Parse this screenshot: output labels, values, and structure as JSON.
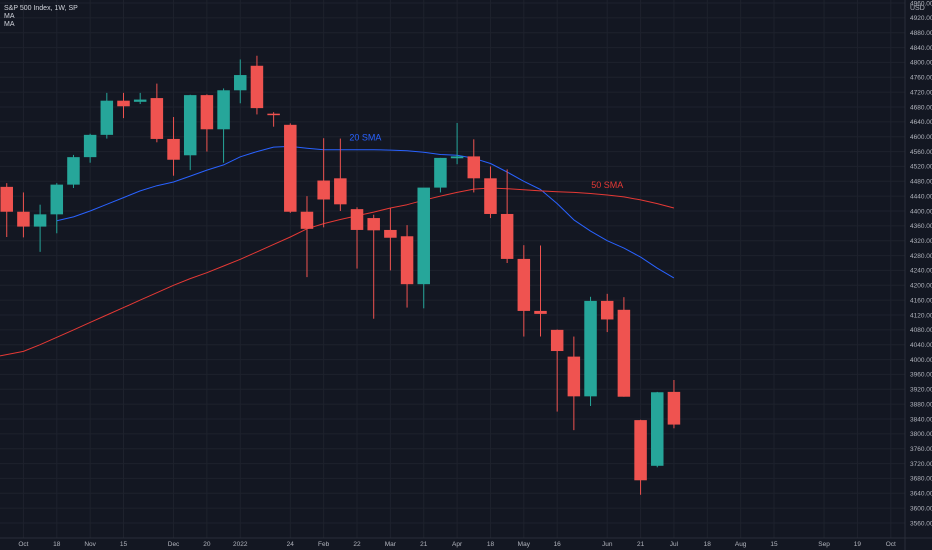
{
  "header": {
    "title": "S&P 500 Index, 1W, SP",
    "indicators": [
      "MA",
      "MA"
    ],
    "currency": "USD"
  },
  "colors": {
    "background": "#131722",
    "grid": "#1e222d",
    "up": "#26a69a",
    "down": "#ef5350",
    "sma20": "#2962ff",
    "sma50": "#e53935",
    "axis_text": "#b2b5be"
  },
  "chart_data": {
    "type": "candlestick",
    "title": "S&P 500 Index, 1W, SP",
    "ylabel": "USD",
    "ylim": [
      3560,
      4960
    ],
    "y_ticks": [
      3560,
      3600,
      3640,
      3680,
      3720,
      3760,
      3800,
      3840,
      3880,
      3920,
      3960,
      4000,
      4040,
      4080,
      4120,
      4160,
      4200,
      4240,
      4280,
      4320,
      4360,
      4400,
      4440,
      4480,
      4520,
      4560,
      4600,
      4640,
      4680,
      4720,
      4760,
      4800,
      4840,
      4880,
      4920,
      4960
    ],
    "y_tick_labels": [
      "3560.00",
      "3600.00",
      "3640.00",
      "3680.00",
      "3720.00",
      "3760.00",
      "3800.00",
      "3840.00",
      "3880.00",
      "3920.00",
      "3960.00",
      "4000.00",
      "4040.00",
      "4080.00",
      "4120.00",
      "4160.00",
      "4200.00",
      "4240.00",
      "4280.00",
      "4320.00",
      "4360.00",
      "4400.00",
      "4440.00",
      "4480.00",
      "4520.00",
      "4560.00",
      "4600.00",
      "4640.00",
      "4680.00",
      "4720.00",
      "4760.00",
      "4800.00",
      "4840.00",
      "4880.00",
      "4920.00",
      "4960.00"
    ],
    "x_tick_labels": [
      {
        "label": "Oct",
        "bar": 1.5
      },
      {
        "label": "18",
        "bar": 3.5
      },
      {
        "label": "Nov",
        "bar": 5.5
      },
      {
        "label": "15",
        "bar": 7.5
      },
      {
        "label": "Dec",
        "bar": 10.5
      },
      {
        "label": "20",
        "bar": 12.5
      },
      {
        "label": "2022",
        "bar": 14.5
      },
      {
        "label": "24",
        "bar": 17.5
      },
      {
        "label": "Feb",
        "bar": 19.5
      },
      {
        "label": "22",
        "bar": 21.5
      },
      {
        "label": "Mar",
        "bar": 23.5
      },
      {
        "label": "21",
        "bar": 25.5
      },
      {
        "label": "Apr",
        "bar": 27.5
      },
      {
        "label": "18",
        "bar": 29.5
      },
      {
        "label": "May",
        "bar": 31.5
      },
      {
        "label": "16",
        "bar": 33.5
      },
      {
        "label": "Jun",
        "bar": 36.5
      },
      {
        "label": "21",
        "bar": 38.5
      },
      {
        "label": "Jul",
        "bar": 40.5
      },
      {
        "label": "18",
        "bar": 42.5
      },
      {
        "label": "15",
        "bar": 46.5
      },
      {
        "label": "Aug",
        "bar": 44.5
      },
      {
        "label": "Sep",
        "bar": 49.5
      },
      {
        "label": "19",
        "bar": 51.5
      },
      {
        "label": "Oct",
        "bar": 53.5
      }
    ],
    "candles": [
      {
        "o": 4465,
        "h": 4475,
        "l": 4330,
        "c": 4398
      },
      {
        "o": 4398,
        "h": 4450,
        "l": 4329,
        "c": 4358
      },
      {
        "o": 4358,
        "h": 4417,
        "l": 4290,
        "c": 4391
      },
      {
        "o": 4391,
        "h": 4475,
        "l": 4340,
        "c": 4471
      },
      {
        "o": 4471,
        "h": 4551,
        "l": 4462,
        "c": 4545
      },
      {
        "o": 4545,
        "h": 4608,
        "l": 4530,
        "c": 4605
      },
      {
        "o": 4605,
        "h": 4718,
        "l": 4595,
        "c": 4697
      },
      {
        "o": 4697,
        "h": 4718,
        "l": 4650,
        "c": 4682
      },
      {
        "o": 4694,
        "h": 4718,
        "l": 4688,
        "c": 4700
      },
      {
        "o": 4704,
        "h": 4743,
        "l": 4585,
        "c": 4594
      },
      {
        "o": 4594,
        "h": 4653,
        "l": 4495,
        "c": 4538
      },
      {
        "o": 4550,
        "h": 4713,
        "l": 4510,
        "c": 4712
      },
      {
        "o": 4712,
        "h": 4714,
        "l": 4560,
        "c": 4620
      },
      {
        "o": 4620,
        "h": 4730,
        "l": 4530,
        "c": 4725
      },
      {
        "o": 4725,
        "h": 4808,
        "l": 4690,
        "c": 4766
      },
      {
        "o": 4791,
        "h": 4818,
        "l": 4660,
        "c": 4677
      },
      {
        "o": 4662,
        "h": 4666,
        "l": 4627,
        "c": 4658
      },
      {
        "o": 4632,
        "h": 4636,
        "l": 4395,
        "c": 4398
      },
      {
        "o": 4398,
        "h": 4440,
        "l": 4222,
        "c": 4352
      },
      {
        "o": 4482,
        "h": 4596,
        "l": 4356,
        "c": 4431
      },
      {
        "o": 4488,
        "h": 4595,
        "l": 4400,
        "c": 4418
      },
      {
        "o": 4405,
        "h": 4410,
        "l": 4245,
        "c": 4349
      },
      {
        "o": 4381,
        "h": 4390,
        "l": 4110,
        "c": 4348
      },
      {
        "o": 4349,
        "h": 4408,
        "l": 4240,
        "c": 4328
      },
      {
        "o": 4332,
        "h": 4362,
        "l": 4140,
        "c": 4203
      },
      {
        "o": 4203,
        "h": 4450,
        "l": 4138,
        "c": 4463
      },
      {
        "o": 4463,
        "h": 4543,
        "l": 4450,
        "c": 4543
      },
      {
        "o": 4542,
        "h": 4637,
        "l": 4526,
        "c": 4547
      },
      {
        "o": 4547,
        "h": 4593,
        "l": 4450,
        "c": 4488
      },
      {
        "o": 4488,
        "h": 4520,
        "l": 4381,
        "c": 4392
      },
      {
        "o": 4392,
        "h": 4512,
        "l": 4260,
        "c": 4271
      },
      {
        "o": 4271,
        "h": 4308,
        "l": 4062,
        "c": 4131
      },
      {
        "o": 4131,
        "h": 4307,
        "l": 4062,
        "c": 4123
      },
      {
        "o": 4080,
        "h": 4081,
        "l": 3860,
        "c": 4023
      },
      {
        "o": 4008,
        "h": 4062,
        "l": 3810,
        "c": 3901
      },
      {
        "o": 3901,
        "h": 4169,
        "l": 3875,
        "c": 4158
      },
      {
        "o": 4158,
        "h": 4177,
        "l": 4074,
        "c": 4108
      },
      {
        "o": 4134,
        "h": 4168,
        "l": 3900,
        "c": 3900
      },
      {
        "o": 3837,
        "h": 3838,
        "l": 3636,
        "c": 3675
      },
      {
        "o": 3714,
        "h": 3913,
        "l": 3710,
        "c": 3912
      },
      {
        "o": 3913,
        "h": 3945,
        "l": 3815,
        "c": 3825
      }
    ],
    "series": [
      {
        "name": "20 SMA",
        "values": [
          null,
          null,
          null,
          4374,
          4384,
          4400,
          4418,
          4436,
          4454,
          4468,
          4478,
          4494,
          4510,
          4524,
          4546,
          4560,
          4572,
          4574,
          4569,
          4565,
          4565,
          4565,
          4565,
          4564,
          4562,
          4558,
          4552,
          4550,
          4542,
          4528,
          4505,
          4480,
          4458,
          4420,
          4376,
          4346,
          4320,
          4300,
          4276,
          4246,
          4220
        ]
      },
      {
        "name": "50 SMA",
        "values": [
          4010,
          4022,
          4040,
          4060,
          4080,
          4100,
          4120,
          4140,
          4160,
          4180,
          4200,
          4218,
          4234,
          4252,
          4270,
          4290,
          4310,
          4330,
          4352,
          4366,
          4377,
          4387,
          4397,
          4408,
          4417,
          4429,
          4440,
          4450,
          4459,
          4462,
          4460,
          4457,
          4454,
          4452,
          4450,
          4447,
          4443,
          4438,
          4430,
          4420,
          4408
        ]
      }
    ],
    "annotations": [
      {
        "text": "20 SMA",
        "bar": 22
      },
      {
        "text": "50 SMA",
        "bar": 36.5
      }
    ],
    "grid": true,
    "legend": "none"
  }
}
